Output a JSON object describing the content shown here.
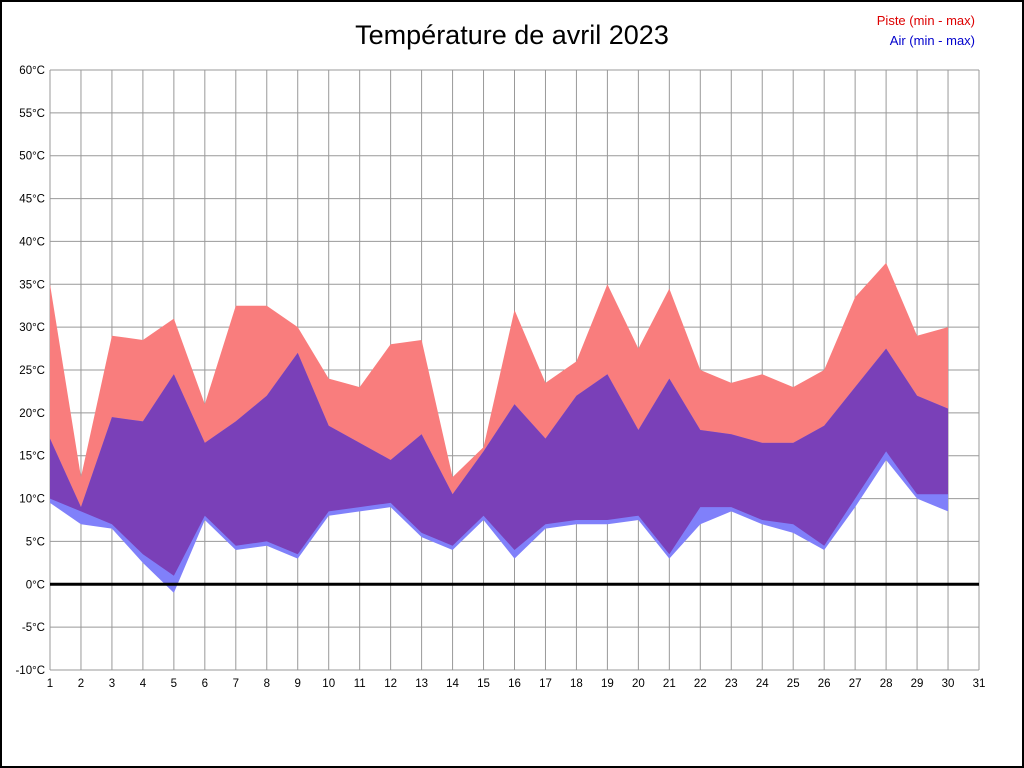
{
  "chart_data": {
    "type": "area",
    "title": "Température de avril 2023",
    "xlabel": "",
    "ylabel": "",
    "xlim": [
      1,
      31
    ],
    "ylim": [
      -10,
      60
    ],
    "grid": true,
    "grid_color": "#999999",
    "zero_line_value": 0,
    "zero_line_color": "#000000",
    "legend_position": "top-right",
    "overlap_color": "#7a40b8",
    "x": [
      1,
      2,
      3,
      4,
      5,
      6,
      7,
      8,
      9,
      10,
      11,
      12,
      13,
      14,
      15,
      16,
      17,
      18,
      19,
      20,
      21,
      22,
      23,
      24,
      25,
      26,
      27,
      28,
      29,
      30
    ],
    "series": [
      {
        "name": "Piste (min - max)",
        "band_color": "#f97d7d",
        "legend_color": "#dd0000",
        "max": [
          35,
          12.5,
          29,
          28.5,
          31,
          21,
          32.5,
          32.5,
          30,
          24,
          23,
          28,
          28.5,
          12.5,
          16,
          32,
          23.5,
          26,
          35,
          27.5,
          34.5,
          25,
          23.5,
          24.5,
          23,
          25,
          33.5,
          37.5,
          29,
          30
        ],
        "min": [
          10,
          8.5,
          7,
          3.5,
          1,
          8,
          4.5,
          5,
          3.5,
          8.5,
          9,
          9.5,
          6,
          4.5,
          8,
          4,
          7,
          7.5,
          7.5,
          8,
          3.5,
          9,
          9,
          7.5,
          7,
          4.5,
          10,
          15.5,
          10.5,
          10.5
        ]
      },
      {
        "name": "Air (min - max)",
        "band_color": "#8080fa",
        "legend_color": "#0000cc",
        "max": [
          17,
          9,
          19.5,
          19,
          24.5,
          16.5,
          19,
          22,
          27,
          18.5,
          16.5,
          14.5,
          17.5,
          10.5,
          15.5,
          21,
          17,
          22,
          24.5,
          18,
          24,
          18,
          17.5,
          16.5,
          16.5,
          18.5,
          23,
          27.5,
          22,
          20.5
        ],
        "min": [
          9.5,
          7,
          6.5,
          2.5,
          -1,
          7.5,
          4,
          4.5,
          3,
          8,
          8.5,
          9,
          5.5,
          4,
          7.5,
          3,
          6.5,
          7,
          7,
          7.5,
          3,
          7,
          8.5,
          7,
          6,
          4,
          9,
          14.5,
          10,
          8.5
        ]
      }
    ],
    "ytick_values": [
      60,
      55,
      50,
      45,
      40,
      35,
      30,
      25,
      20,
      15,
      10,
      5,
      0,
      -5,
      -10
    ],
    "ytick_labels": [
      "60°C",
      "55°C",
      "50°C",
      "45°C",
      "40°C",
      "35°C",
      "30°C",
      "25°C",
      "20°C",
      "15°C",
      "10°C",
      "5°C",
      "0°C",
      "-5°C",
      "-10°C"
    ],
    "xticks": [
      1,
      2,
      3,
      4,
      5,
      6,
      7,
      8,
      9,
      10,
      11,
      12,
      13,
      14,
      15,
      16,
      17,
      18,
      19,
      20,
      21,
      22,
      23,
      24,
      25,
      26,
      27,
      28,
      29,
      30,
      31
    ]
  }
}
